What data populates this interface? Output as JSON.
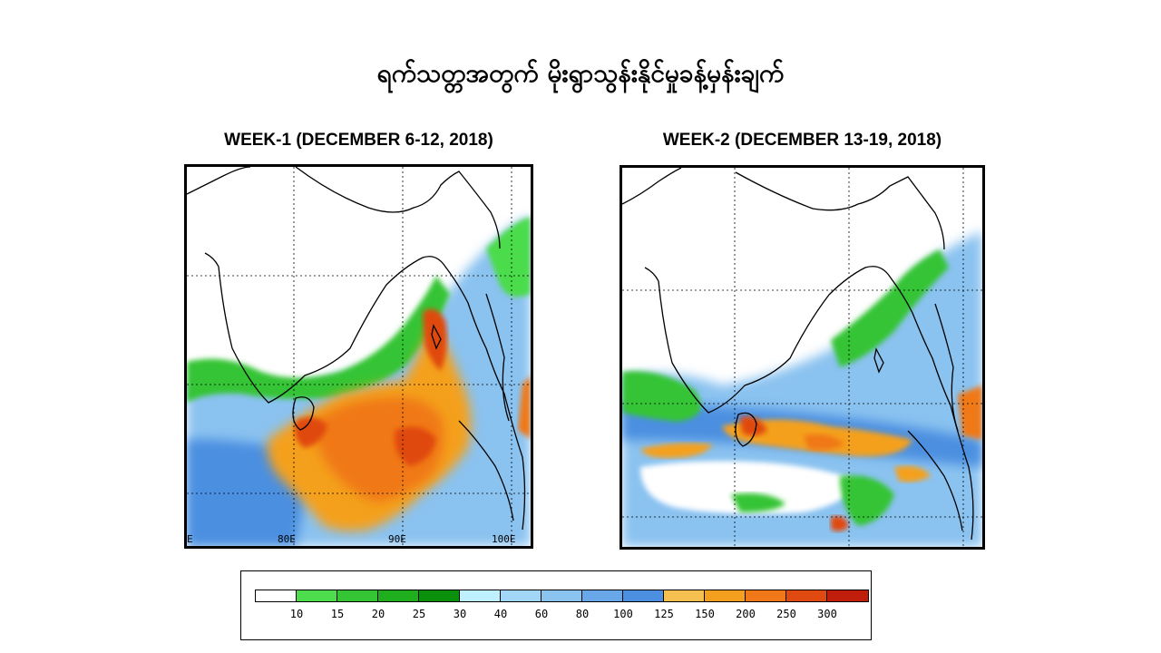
{
  "title": "ရက်သတ္တအတွက် မိုးရွာသွန်းနိုင်မှုခန့်မှန်းချက်",
  "panels": [
    {
      "label": "WEEK-1 (DECEMBER 6-12, 2018)",
      "lon_labels": [
        "80E",
        "90E",
        "100E"
      ],
      "edge_label": "E"
    },
    {
      "label": "WEEK-2 (DECEMBER 13-19, 2018)"
    }
  ],
  "legend": {
    "ticks": [
      "10",
      "15",
      "20",
      "25",
      "30",
      "40",
      "60",
      "80",
      "100",
      "125",
      "150",
      "200",
      "250",
      "300"
    ],
    "colors": [
      "#ffffff",
      "#4cdc4c",
      "#34c434",
      "#1eae1e",
      "#0a900a",
      "#bff0ff",
      "#a2d6f6",
      "#8ac2f0",
      "#69a8e8",
      "#4c8fe0",
      "#f5c050",
      "#f4a01e",
      "#f07818",
      "#e04a10",
      "#c01e0a"
    ]
  }
}
